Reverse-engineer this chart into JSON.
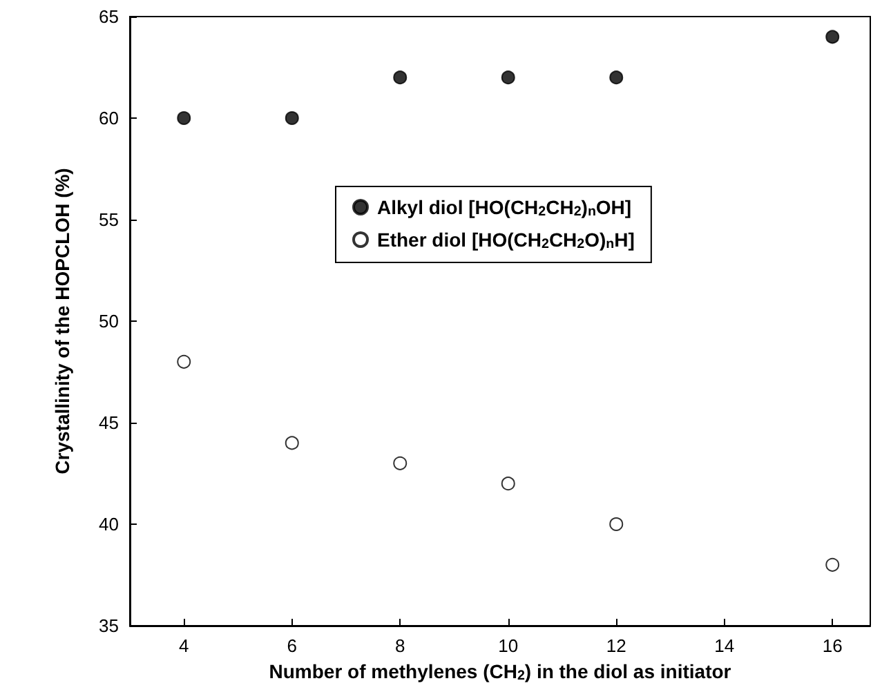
{
  "chart_data": {
    "type": "scatter",
    "xlabel": "Number of methylenes (CH$_{2}$) in the diol as initiator",
    "ylabel": "Crystallinity of the HOPCLOH (%)",
    "x": [
      4,
      6,
      8,
      10,
      12,
      16
    ],
    "series": [
      {
        "name": "Alkyl diol [HO(CH$_{2}$CH$_{2}$)$_{n}$OH]",
        "color": "#000000",
        "values": [
          60,
          60,
          62,
          62,
          62,
          64
        ]
      },
      {
        "name": "Ether diol [HO(CH$_{2}$CH$_{2}$O)$_{n}$H]",
        "color": "#ffffff",
        "values": [
          48,
          44,
          43,
          42,
          40,
          38
        ]
      }
    ],
    "xlim": [
      3,
      16.7
    ],
    "xticks": [
      4,
      6,
      8,
      10,
      12,
      14,
      16
    ],
    "ylim": [
      35,
      65
    ],
    "yticks": [
      35,
      40,
      45,
      50,
      55,
      60,
      65
    ],
    "marker": "circle",
    "legend": "right",
    "grid": false
  }
}
